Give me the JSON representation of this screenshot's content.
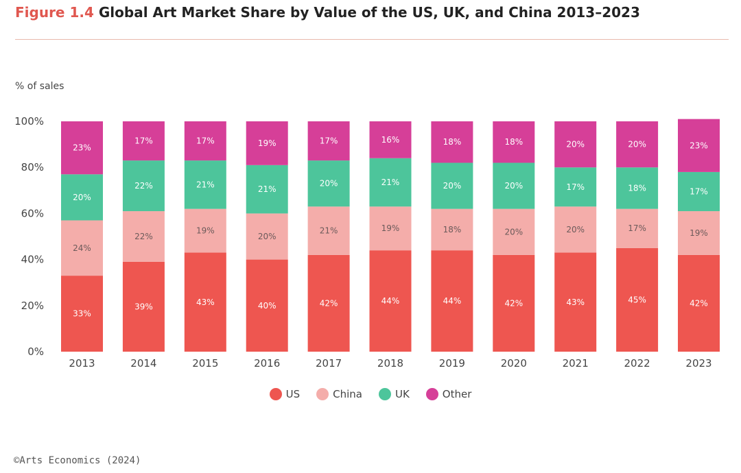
{
  "header": {
    "figure_label": "Figure 1.4",
    "title": "Global Art Market Share by Value of the US, UK, and China 2013–2023"
  },
  "source": "©Arts Economics (2024)",
  "chart_data": {
    "type": "bar",
    "stacked": true,
    "ylabel": "% of sales",
    "ylim": [
      0,
      100
    ],
    "yticks": [
      "0%",
      "20%",
      "40%",
      "60%",
      "80%",
      "100%"
    ],
    "categories": [
      "2013",
      "2014",
      "2015",
      "2016",
      "2017",
      "2018",
      "2019",
      "2020",
      "2021",
      "2022",
      "2023"
    ],
    "series": [
      {
        "name": "US",
        "color": "#ee5650",
        "values": [
          33,
          39,
          43,
          40,
          42,
          44,
          44,
          42,
          43,
          45,
          42
        ]
      },
      {
        "name": "China",
        "color": "#f4adaa",
        "values": [
          24,
          22,
          19,
          20,
          21,
          19,
          18,
          20,
          20,
          17,
          19
        ]
      },
      {
        "name": "UK",
        "color": "#4dc59b",
        "values": [
          20,
          22,
          21,
          21,
          20,
          21,
          20,
          20,
          17,
          18,
          17
        ]
      },
      {
        "name": "Other",
        "color": "#d63f98",
        "values": [
          23,
          17,
          17,
          19,
          17,
          16,
          18,
          18,
          20,
          20,
          23
        ]
      }
    ],
    "data_label_suffix": "%",
    "legend_position": "bottom-center",
    "grid": false
  }
}
